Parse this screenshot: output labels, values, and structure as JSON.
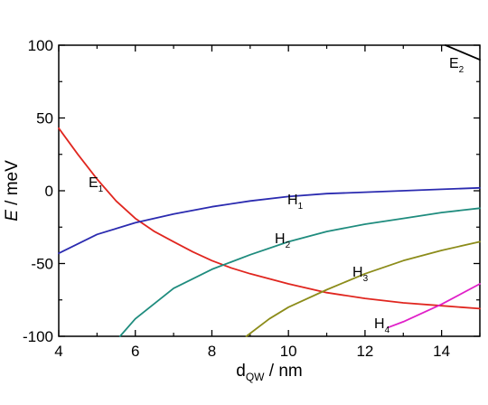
{
  "chart_data": {
    "type": "line",
    "xlabel": {
      "main": "d",
      "sub": "QW",
      "rest": " / nm"
    },
    "ylabel": {
      "main": "E",
      "rest": " / meV"
    },
    "xlim": [
      4,
      15
    ],
    "ylim": [
      -100,
      100
    ],
    "xticks": [
      "4",
      "6",
      "8",
      "10",
      "12",
      "14"
    ],
    "yticks": [
      "-100",
      "-50",
      "0",
      "50",
      "100"
    ],
    "grid": false,
    "series": [
      {
        "name": "E",
        "sub": "1",
        "color": "#e0261f",
        "x": [
          4,
          4.5,
          5,
          5.5,
          6,
          6.5,
          7,
          7.5,
          8,
          8.5,
          9,
          10,
          11,
          12,
          13,
          14,
          15
        ],
        "y": [
          43,
          25,
          8,
          -7,
          -19,
          -28,
          -35,
          -42,
          -48,
          -53,
          -57,
          -64,
          -70,
          -74,
          -77,
          -79,
          -81
        ]
      },
      {
        "name": "E",
        "sub": "2",
        "color": "#000000",
        "x": [
          14.1,
          15
        ],
        "y": [
          100,
          90
        ]
      },
      {
        "name": "H",
        "sub": "1",
        "color": "#2b2bb0",
        "x": [
          4,
          5,
          6,
          7,
          8,
          9,
          10,
          11,
          12,
          13,
          14,
          15
        ],
        "y": [
          -43,
          -30,
          -22,
          -16,
          -11,
          -7,
          -4,
          -2,
          -1,
          0,
          1,
          2
        ]
      },
      {
        "name": "H",
        "sub": "2",
        "color": "#1f8c7e",
        "x": [
          5.6,
          6,
          7,
          8,
          9,
          10,
          11,
          12,
          13,
          14,
          15
        ],
        "y": [
          -100,
          -88,
          -67,
          -54,
          -44,
          -35,
          -28,
          -23,
          -19,
          -15,
          -12
        ]
      },
      {
        "name": "H",
        "sub": "3",
        "color": "#8c8c1a",
        "x": [
          8.9,
          9.5,
          10,
          11,
          12,
          13,
          14,
          15
        ],
        "y": [
          -100,
          -88,
          -80,
          -68,
          -57,
          -48,
          -41,
          -35
        ]
      },
      {
        "name": "H",
        "sub": "4",
        "color": "#e020c8",
        "x": [
          12.6,
          13,
          14,
          15
        ],
        "y": [
          -94,
          -90,
          -78,
          -64
        ]
      }
    ],
    "annotations": [
      {
        "series": "E1",
        "x": 7.5,
        "y": -63,
        "main": "E",
        "sub": "1"
      },
      {
        "series": "E2",
        "x": 14.3,
        "y": 9,
        "main": "E",
        "sub": "2"
      },
      {
        "series": "H1",
        "x": 6.1,
        "y": 95,
        "main": "H",
        "sub": "1"
      },
      {
        "series": "H2",
        "x": 6.7,
        "y": 85,
        "main": "H",
        "sub": "2"
      },
      {
        "series": "H3",
        "x": 8.9,
        "y": 64,
        "main": "H",
        "sub": "3"
      },
      {
        "series": "H4",
        "x": 3.2,
        "y": 56,
        "main": "H",
        "sub": "4"
      }
    ]
  }
}
